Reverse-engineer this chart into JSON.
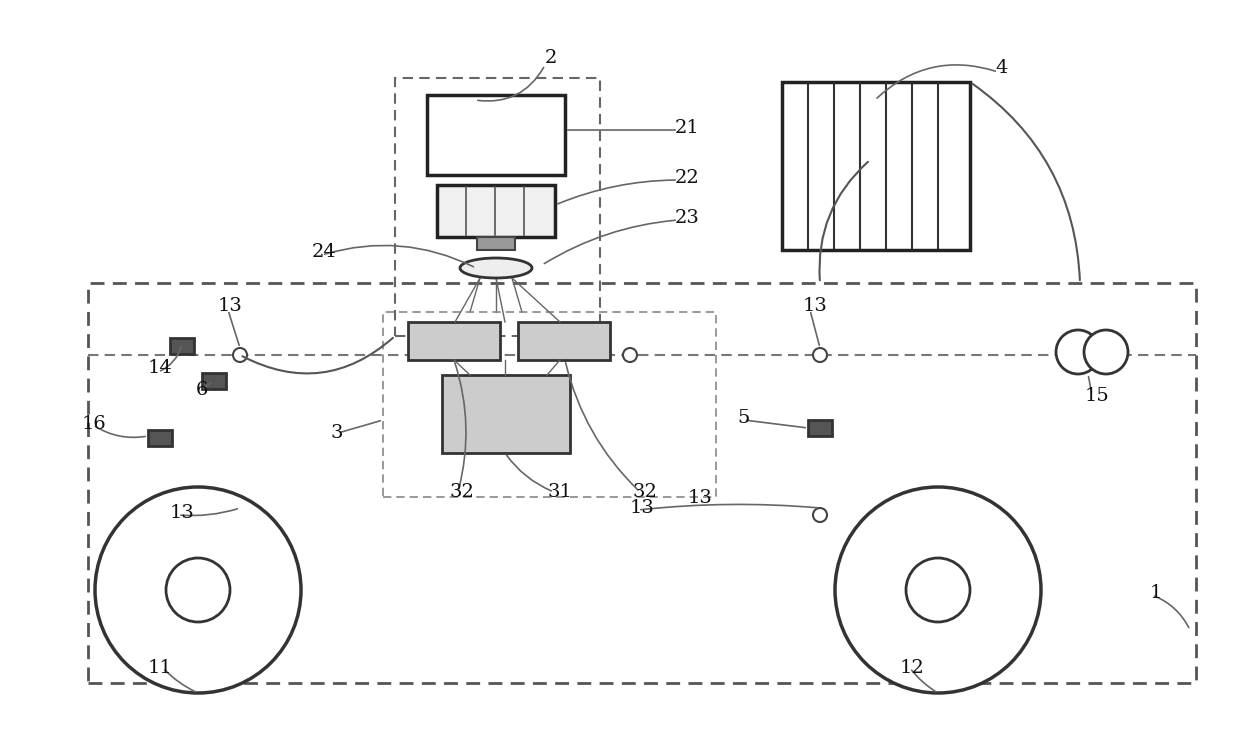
{
  "bg_color": "#ffffff",
  "line_color": "#444444",
  "dashed_color": "#777777",
  "figsize": [
    12.4,
    7.42
  ],
  "dpi": 100
}
